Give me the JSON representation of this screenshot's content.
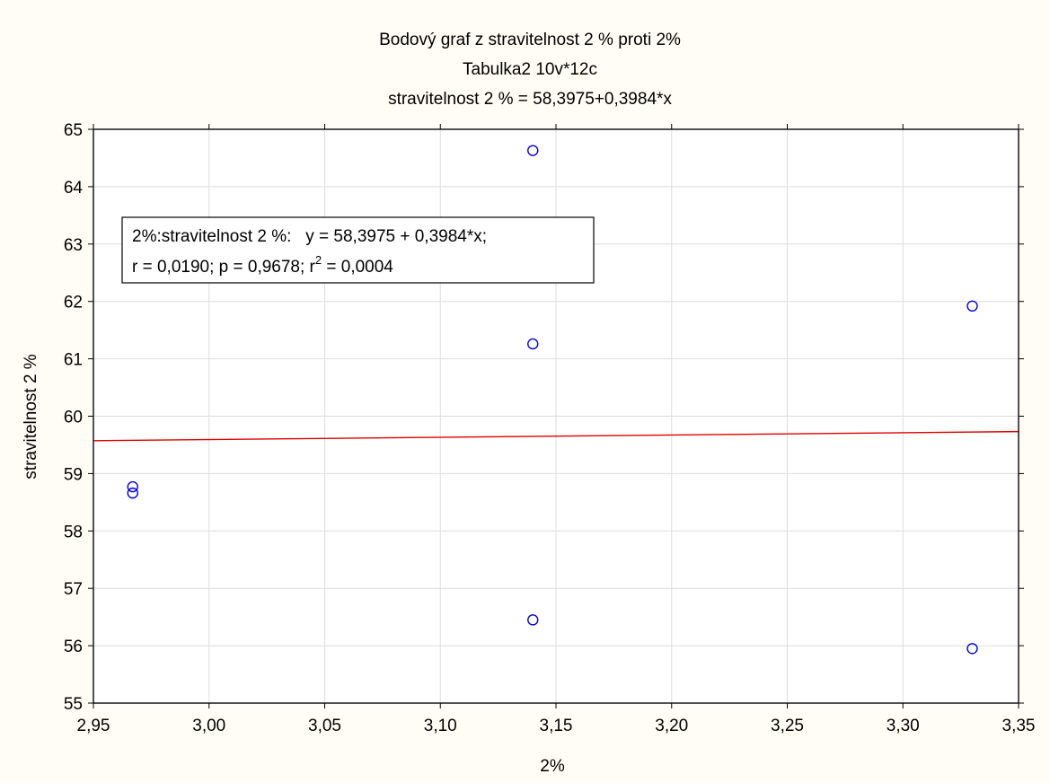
{
  "chart_data": {
    "type": "scatter",
    "title": "Bodový graf z stravitelnost 2 % proti 2%",
    "subtitle": "Tabulka2 10v*12c",
    "equation_title": "stravitelnost 2 % = 58,3975+0,3984*x",
    "xlabel": "2%",
    "ylabel": "stravitelnost 2 %",
    "xlim": [
      2.95,
      3.35
    ],
    "ylim": [
      55,
      65
    ],
    "x_ticks": [
      2.95,
      3.0,
      3.05,
      3.1,
      3.15,
      3.2,
      3.25,
      3.3,
      3.35
    ],
    "x_tick_labels": [
      "2,95",
      "3,00",
      "3,05",
      "3,10",
      "3,15",
      "3,20",
      "3,25",
      "3,30",
      "3,35"
    ],
    "y_ticks": [
      55,
      56,
      57,
      58,
      59,
      60,
      61,
      62,
      63,
      64,
      65
    ],
    "y_tick_labels": [
      "55",
      "56",
      "57",
      "58",
      "59",
      "60",
      "61",
      "62",
      "63",
      "64",
      "65"
    ],
    "grid": true,
    "points": [
      {
        "x": 2.967,
        "y": 58.77
      },
      {
        "x": 2.967,
        "y": 58.66
      },
      {
        "x": 3.14,
        "y": 64.63
      },
      {
        "x": 3.14,
        "y": 61.26
      },
      {
        "x": 3.14,
        "y": 56.45
      },
      {
        "x": 3.33,
        "y": 61.92
      },
      {
        "x": 3.33,
        "y": 55.95
      }
    ],
    "fit": {
      "intercept": 58.3975,
      "slope": 0.3984
    },
    "legend": {
      "placement": "top-left",
      "line1": "2%:stravitelnost 2 %:   y = 58,3975 + 0,3984*x;",
      "line2_prefix": "r = 0,0190; p = 0,9678; r",
      "line2_sup": "2",
      "line2_suffix": " = 0,0004"
    },
    "colors": {
      "points": "#0000e0",
      "fit_line": "#e00000"
    }
  }
}
